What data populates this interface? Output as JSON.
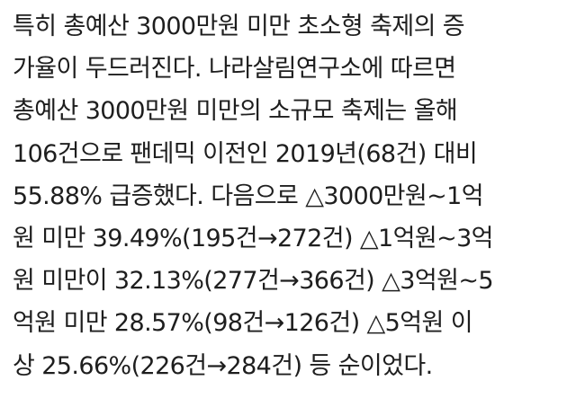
{
  "article": {
    "lines": [
      "특히 총예산 3000만원 미만 초소형 축제의 증",
      "가율이 두드러진다. 나라살림연구소에 따르면",
      "총예산 3000만원 미만의 소규모 축제는 올해",
      "106건으로 팬데믹 이전인 2019년(68건) 대비",
      "55.88% 급증했다. 다음으로 △3000만원~1억",
      "원 미만 39.49%(195건→272건) △1억원~3억",
      "원 미만이 32.13%(277건→366건) △3억원~5",
      "억원 미만 28.57%(98건→126건) △5억원 이",
      "상 25.66%(226건→284건) 등 순이었다."
    ]
  }
}
